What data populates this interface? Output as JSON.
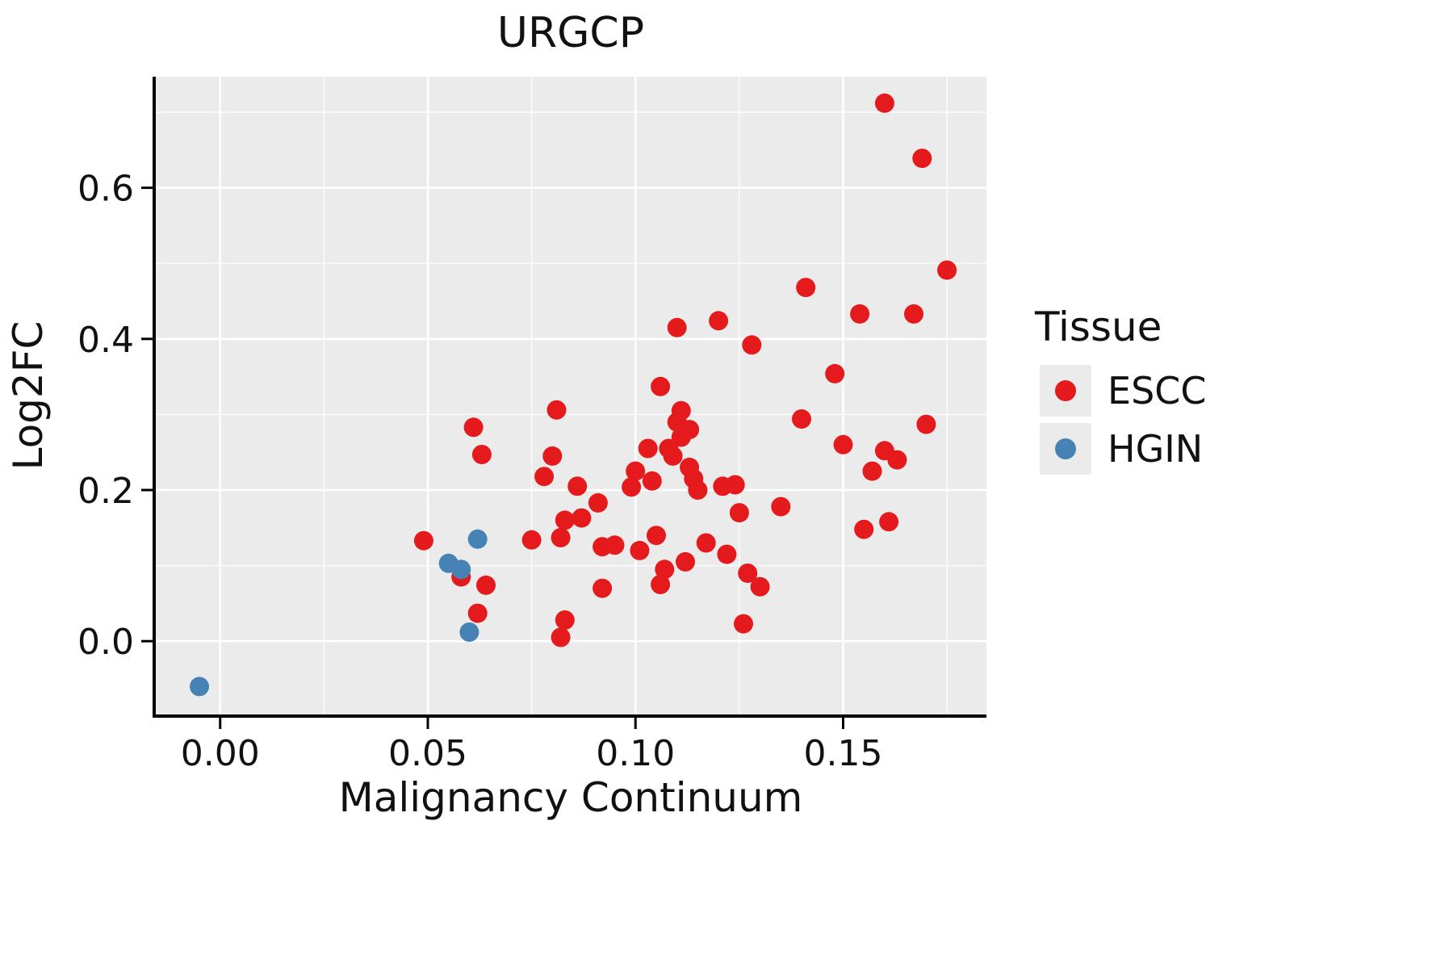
{
  "title": "URGCP",
  "colors": {
    "panel_bg": "#EBEBEB",
    "grid": "#FFFFFF",
    "axis": "#000000",
    "escc": "#E41A1C",
    "hgin": "#4682B4"
  },
  "legend": {
    "title": "Tissue",
    "entries": [
      {
        "label": "ESCC",
        "color": "#E41A1C"
      },
      {
        "label": "HGIN",
        "color": "#4682B4"
      }
    ]
  },
  "chart_data": {
    "type": "scatter",
    "title": "URGCP",
    "xlabel": "Malignancy Continuum",
    "ylabel": "Log2FC",
    "xlim": [
      -0.0155,
      0.1845
    ],
    "ylim": [
      -0.097,
      0.747
    ],
    "x_ticks": {
      "values": [
        0.0,
        0.05,
        0.1,
        0.15
      ],
      "labels": [
        "0.00",
        "0.05",
        "0.10",
        "0.15"
      ]
    },
    "y_ticks": {
      "values": [
        0.0,
        0.2,
        0.4,
        0.6
      ],
      "labels": [
        "0.0",
        "0.2",
        "0.4",
        "0.6"
      ]
    },
    "x_minor_ticks": [
      0.025,
      0.075,
      0.125,
      0.175
    ],
    "y_minor_ticks": [
      0.1,
      0.3,
      0.5,
      0.7
    ],
    "grid": "major-and-minor-white-on-gray",
    "legend_position": "right",
    "series": [
      {
        "name": "ESCC",
        "color": "#E41A1C",
        "points": [
          [
            0.049,
            0.133
          ],
          [
            0.058,
            0.085
          ],
          [
            0.061,
            0.283
          ],
          [
            0.063,
            0.247
          ],
          [
            0.062,
            0.037
          ],
          [
            0.064,
            0.074
          ],
          [
            0.075,
            0.134
          ],
          [
            0.078,
            0.218
          ],
          [
            0.08,
            0.245
          ],
          [
            0.081,
            0.306
          ],
          [
            0.082,
            0.137
          ],
          [
            0.083,
            0.16
          ],
          [
            0.083,
            0.028
          ],
          [
            0.082,
            0.005
          ],
          [
            0.086,
            0.205
          ],
          [
            0.087,
            0.163
          ],
          [
            0.091,
            0.183
          ],
          [
            0.092,
            0.125
          ],
          [
            0.095,
            0.127
          ],
          [
            0.092,
            0.07
          ],
          [
            0.099,
            0.204
          ],
          [
            0.1,
            0.225
          ],
          [
            0.101,
            0.12
          ],
          [
            0.103,
            0.255
          ],
          [
            0.104,
            0.212
          ],
          [
            0.105,
            0.14
          ],
          [
            0.106,
            0.075
          ],
          [
            0.107,
            0.095
          ],
          [
            0.106,
            0.337
          ],
          [
            0.108,
            0.255
          ],
          [
            0.109,
            0.245
          ],
          [
            0.11,
            0.415
          ],
          [
            0.11,
            0.29
          ],
          [
            0.111,
            0.305
          ],
          [
            0.111,
            0.27
          ],
          [
            0.112,
            0.105
          ],
          [
            0.113,
            0.23
          ],
          [
            0.113,
            0.28
          ],
          [
            0.114,
            0.215
          ],
          [
            0.115,
            0.2
          ],
          [
            0.117,
            0.13
          ],
          [
            0.12,
            0.424
          ],
          [
            0.121,
            0.205
          ],
          [
            0.122,
            0.115
          ],
          [
            0.124,
            0.207
          ],
          [
            0.125,
            0.17
          ],
          [
            0.126,
            0.023
          ],
          [
            0.127,
            0.09
          ],
          [
            0.128,
            0.392
          ],
          [
            0.13,
            0.072
          ],
          [
            0.135,
            0.178
          ],
          [
            0.14,
            0.294
          ],
          [
            0.141,
            0.468
          ],
          [
            0.148,
            0.354
          ],
          [
            0.15,
            0.26
          ],
          [
            0.154,
            0.433
          ],
          [
            0.155,
            0.148
          ],
          [
            0.157,
            0.225
          ],
          [
            0.16,
            0.712
          ],
          [
            0.16,
            0.252
          ],
          [
            0.161,
            0.158
          ],
          [
            0.163,
            0.24
          ],
          [
            0.167,
            0.433
          ],
          [
            0.169,
            0.639
          ],
          [
            0.17,
            0.287
          ],
          [
            0.175,
            0.491
          ]
        ]
      },
      {
        "name": "HGIN",
        "color": "#4682B4",
        "points": [
          [
            -0.005,
            -0.06
          ],
          [
            0.055,
            0.103
          ],
          [
            0.058,
            0.095
          ],
          [
            0.062,
            0.135
          ],
          [
            0.06,
            0.012
          ]
        ]
      }
    ]
  }
}
